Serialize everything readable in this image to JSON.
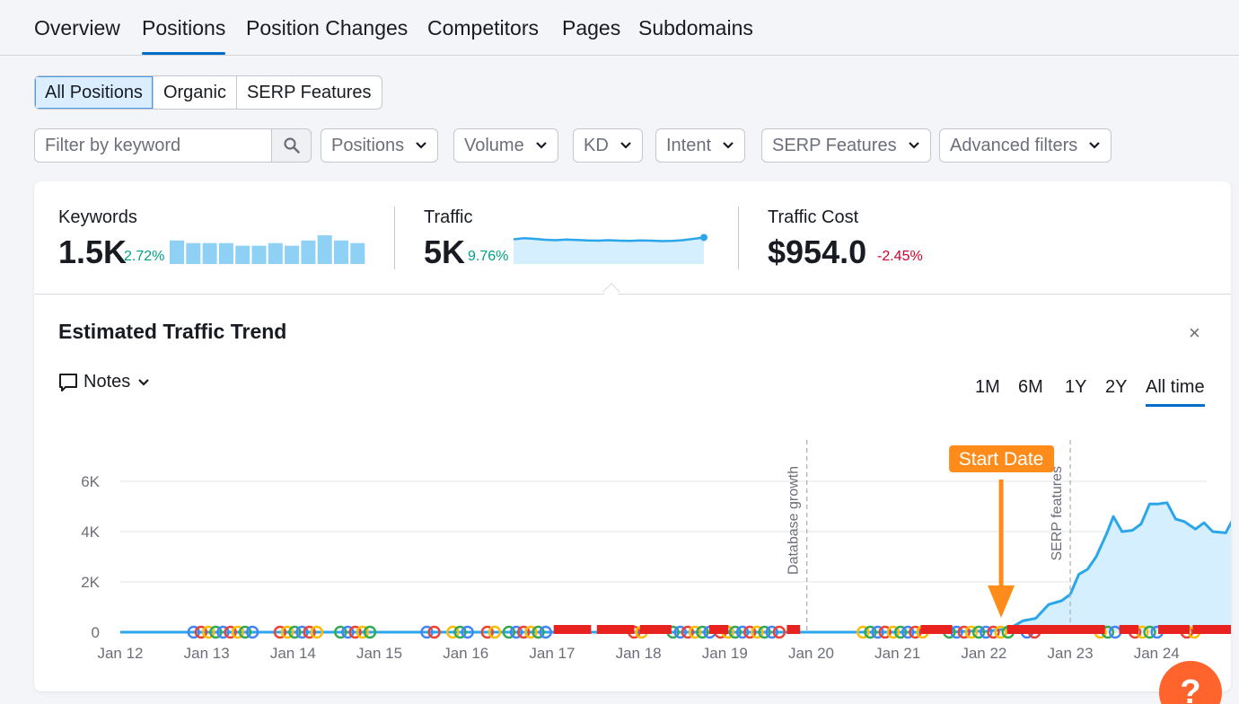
{
  "nav": {
    "tabs": [
      {
        "label": "Overview",
        "active": false
      },
      {
        "label": "Positions",
        "active": true
      },
      {
        "label": "Position Changes",
        "active": false
      },
      {
        "label": "Competitors",
        "active": false
      },
      {
        "label": "Pages",
        "active": false
      },
      {
        "label": "Subdomains",
        "active": false
      }
    ]
  },
  "segment": {
    "items": [
      {
        "label": "All Positions",
        "active": true
      },
      {
        "label": "Organic",
        "active": false
      },
      {
        "label": "SERP Features",
        "active": false
      }
    ]
  },
  "filters": {
    "search_placeholder": "Filter by keyword",
    "dropdowns": [
      "Positions",
      "Volume",
      "KD",
      "Intent",
      "SERP Features",
      "Advanced filters"
    ]
  },
  "metrics": {
    "keywords": {
      "label": "Keywords",
      "value": "1.5K",
      "delta": "2.72%",
      "delta_color": "#009f81",
      "bars": [
        9,
        8,
        8,
        8,
        7,
        7,
        8,
        7,
        9,
        11,
        9,
        8,
        8
      ]
    },
    "traffic": {
      "label": "Traffic",
      "value": "5K",
      "delta": "9.76%",
      "delta_color": "#009f81",
      "trend": [
        10,
        10.5,
        10.2,
        9.8,
        9.6,
        9.9,
        9.7,
        9.5,
        9.4,
        9.6,
        9.4,
        9.3,
        9.5,
        9.4,
        9.2,
        9.3,
        9.6,
        10.2,
        10.8
      ]
    },
    "traffic_cost": {
      "label": "Traffic Cost",
      "value": "$954.0",
      "delta": "-2.45%",
      "delta_color": "#d1002f"
    }
  },
  "trend": {
    "title": "Estimated Traffic Trend",
    "close_label": "×",
    "notes_label": "Notes",
    "periods": [
      {
        "label": "1M",
        "active": false
      },
      {
        "label": "6M",
        "active": false
      },
      {
        "label": "1Y",
        "active": false
      },
      {
        "label": "2Y",
        "active": false
      },
      {
        "label": "All time",
        "active": true
      }
    ]
  },
  "chart_data": {
    "type": "area",
    "title": "",
    "xlabel": "",
    "ylabel": "",
    "x_ticks": [
      "Jan 12",
      "Jan 13",
      "Jan 14",
      "Jan 15",
      "Jan 16",
      "Jan 17",
      "Jan 18",
      "Jan 19",
      "Jan 20",
      "Jan 21",
      "Jan 22",
      "Jan 23",
      "Jan 24"
    ],
    "y_ticks": [
      "0",
      "2K",
      "4K",
      "6K"
    ],
    "ylim": [
      0,
      7000
    ],
    "xlim": [
      2012.0,
      2024.58
    ],
    "grid": true,
    "legend": "none",
    "series": [
      {
        "color": "#2ba6ea",
        "points": [
          [
            2012.0,
            0
          ],
          [
            2013.0,
            0
          ],
          [
            2014.0,
            0
          ],
          [
            2015.0,
            0
          ],
          [
            2016.0,
            0
          ],
          [
            2017.0,
            0
          ],
          [
            2018.0,
            0
          ],
          [
            2019.0,
            0
          ],
          [
            2020.0,
            0
          ],
          [
            2021.0,
            0
          ],
          [
            2021.6,
            0
          ],
          [
            2021.9,
            50
          ],
          [
            2022.0,
            20
          ],
          [
            2022.15,
            80
          ],
          [
            2022.3,
            150
          ],
          [
            2022.45,
            450
          ],
          [
            2022.6,
            550
          ],
          [
            2022.75,
            1100
          ],
          [
            2022.9,
            1250
          ],
          [
            2023.0,
            1500
          ],
          [
            2023.1,
            2300
          ],
          [
            2023.2,
            2500
          ],
          [
            2023.3,
            3000
          ],
          [
            2023.42,
            3900
          ],
          [
            2023.5,
            4600
          ],
          [
            2023.6,
            4000
          ],
          [
            2023.72,
            4050
          ],
          [
            2023.82,
            4300
          ],
          [
            2023.92,
            5100
          ],
          [
            2024.02,
            5100
          ],
          [
            2024.12,
            5150
          ],
          [
            2024.22,
            4500
          ],
          [
            2024.32,
            4400
          ],
          [
            2024.45,
            4100
          ],
          [
            2024.55,
            4350
          ],
          [
            2024.65,
            4000
          ],
          [
            2024.8,
            3950
          ],
          [
            2024.9,
            4600
          ],
          [
            2024.98,
            5000
          ]
        ]
      }
    ],
    "annotations": [
      {
        "type": "vline",
        "x": 2019.95,
        "label": "Database growth"
      },
      {
        "type": "vline",
        "x": 2023.0,
        "label": "SERP features"
      },
      {
        "type": "arrow",
        "x": 2022.2,
        "label": "Start Date",
        "color": "#ff8c1a"
      }
    ],
    "event_markers": {
      "google_icon_color": [
        "#4285f4",
        "#ea4335",
        "#fbbc05",
        "#34a853"
      ],
      "flag_color": "#e8231f"
    }
  }
}
